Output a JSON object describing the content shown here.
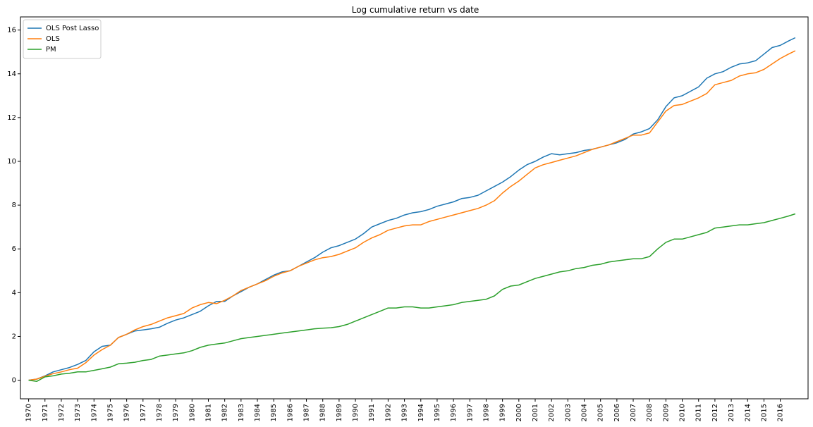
{
  "chart_data": {
    "type": "line",
    "title": "Log cumulative return vs date",
    "xlabel": "",
    "ylabel": "",
    "xlim": [
      1969.5,
      2017.7
    ],
    "ylim": [
      -0.85,
      16.6
    ],
    "x_ticks": [
      "1970",
      "1971",
      "1972",
      "1973",
      "1974",
      "1975",
      "1976",
      "1977",
      "1978",
      "1979",
      "1980",
      "1981",
      "1982",
      "1983",
      "1984",
      "1985",
      "1986",
      "1987",
      "1988",
      "1989",
      "1990",
      "1991",
      "1992",
      "1993",
      "1994",
      "1995",
      "1996",
      "1997",
      "1998",
      "1999",
      "2000",
      "2001",
      "2002",
      "2003",
      "2004",
      "2005",
      "2006",
      "2007",
      "2008",
      "2009",
      "2010",
      "2011",
      "2012",
      "2013",
      "2014",
      "2015",
      "2016"
    ],
    "y_ticks": [
      0,
      2,
      4,
      6,
      8,
      10,
      12,
      14,
      16
    ],
    "grid": false,
    "legend": {
      "placement": "top-left"
    },
    "series": [
      {
        "name": "OLS Post Lasso",
        "color": "#1f77b4",
        "x": [
          1970.0,
          1970.5,
          1971.0,
          1971.5,
          1972.0,
          1972.5,
          1973.0,
          1973.5,
          1974.0,
          1974.5,
          1975.0,
          1975.5,
          1976.0,
          1976.5,
          1977.0,
          1977.5,
          1978.0,
          1978.5,
          1979.0,
          1979.5,
          1980.0,
          1980.5,
          1981.0,
          1981.5,
          1982.0,
          1982.5,
          1983.0,
          1983.5,
          1984.0,
          1984.5,
          1985.0,
          1985.5,
          1986.0,
          1986.5,
          1987.0,
          1987.5,
          1988.0,
          1988.5,
          1989.0,
          1989.5,
          1990.0,
          1990.5,
          1991.0,
          1991.5,
          1992.0,
          1992.5,
          1993.0,
          1993.5,
          1994.0,
          1994.5,
          1995.0,
          1995.5,
          1996.0,
          1996.5,
          1997.0,
          1997.5,
          1998.0,
          1998.5,
          1999.0,
          1999.5,
          2000.0,
          2000.5,
          2001.0,
          2001.5,
          2002.0,
          2002.5,
          2003.0,
          2003.5,
          2004.0,
          2004.5,
          2005.0,
          2005.5,
          2006.0,
          2006.5,
          2007.0,
          2007.5,
          2008.0,
          2008.5,
          2009.0,
          2009.5,
          2010.0,
          2010.5,
          2011.0,
          2011.5,
          2012.0,
          2012.5,
          2013.0,
          2013.5,
          2014.0,
          2014.5,
          2015.0,
          2015.5,
          2016.0,
          2016.5,
          2016.92
        ],
        "y": [
          0.0,
          0.05,
          0.2,
          0.38,
          0.48,
          0.58,
          0.72,
          0.9,
          1.3,
          1.55,
          1.6,
          1.95,
          2.1,
          2.25,
          2.3,
          2.35,
          2.42,
          2.6,
          2.75,
          2.85,
          3.0,
          3.15,
          3.4,
          3.6,
          3.6,
          3.85,
          4.05,
          4.25,
          4.4,
          4.6,
          4.8,
          4.95,
          5.0,
          5.2,
          5.4,
          5.6,
          5.85,
          6.05,
          6.15,
          6.3,
          6.45,
          6.7,
          7.0,
          7.15,
          7.3,
          7.4,
          7.55,
          7.65,
          7.7,
          7.8,
          7.95,
          8.05,
          8.15,
          8.3,
          8.35,
          8.45,
          8.65,
          8.85,
          9.05,
          9.3,
          9.6,
          9.85,
          10.0,
          10.2,
          10.35,
          10.3,
          10.35,
          10.4,
          10.5,
          10.55,
          10.65,
          10.75,
          10.85,
          11.0,
          11.25,
          11.35,
          11.5,
          11.9,
          12.5,
          12.9,
          13.0,
          13.2,
          13.4,
          13.8,
          14.0,
          14.1,
          14.3,
          14.45,
          14.5,
          14.6,
          14.9,
          15.2,
          15.3,
          15.5,
          15.65
        ]
      },
      {
        "name": "OLS",
        "color": "#ff7f0e",
        "x": [
          1970.0,
          1970.5,
          1971.0,
          1971.5,
          1972.0,
          1972.5,
          1973.0,
          1973.5,
          1974.0,
          1974.5,
          1975.0,
          1975.5,
          1976.0,
          1976.5,
          1977.0,
          1977.5,
          1978.0,
          1978.5,
          1979.0,
          1979.5,
          1980.0,
          1980.5,
          1981.0,
          1981.5,
          1982.0,
          1982.5,
          1983.0,
          1983.5,
          1984.0,
          1984.5,
          1985.0,
          1985.5,
          1986.0,
          1986.5,
          1987.0,
          1987.5,
          1988.0,
          1988.5,
          1989.0,
          1989.5,
          1990.0,
          1990.5,
          1991.0,
          1991.5,
          1992.0,
          1992.5,
          1993.0,
          1993.5,
          1994.0,
          1994.5,
          1995.0,
          1995.5,
          1996.0,
          1996.5,
          1997.0,
          1997.5,
          1998.0,
          1998.5,
          1999.0,
          1999.5,
          2000.0,
          2000.5,
          2001.0,
          2001.5,
          2002.0,
          2002.5,
          2003.0,
          2003.5,
          2004.0,
          2004.5,
          2005.0,
          2005.5,
          2006.0,
          2006.5,
          2007.0,
          2007.5,
          2008.0,
          2008.5,
          2009.0,
          2009.5,
          2010.0,
          2010.5,
          2011.0,
          2011.5,
          2012.0,
          2012.5,
          2013.0,
          2013.5,
          2014.0,
          2014.5,
          2015.0,
          2015.5,
          2016.0,
          2016.5,
          2016.92
        ],
        "y": [
          0.0,
          0.05,
          0.18,
          0.3,
          0.38,
          0.48,
          0.55,
          0.8,
          1.15,
          1.4,
          1.6,
          1.95,
          2.1,
          2.3,
          2.45,
          2.55,
          2.7,
          2.85,
          2.95,
          3.05,
          3.3,
          3.45,
          3.55,
          3.5,
          3.65,
          3.85,
          4.1,
          4.25,
          4.4,
          4.55,
          4.75,
          4.9,
          5.0,
          5.2,
          5.35,
          5.5,
          5.6,
          5.65,
          5.75,
          5.9,
          6.05,
          6.3,
          6.5,
          6.65,
          6.85,
          6.95,
          7.05,
          7.1,
          7.1,
          7.25,
          7.35,
          7.45,
          7.55,
          7.65,
          7.75,
          7.85,
          8.0,
          8.2,
          8.55,
          8.85,
          9.1,
          9.4,
          9.7,
          9.85,
          9.95,
          10.05,
          10.15,
          10.25,
          10.4,
          10.55,
          10.65,
          10.75,
          10.9,
          11.05,
          11.2,
          11.2,
          11.3,
          11.8,
          12.3,
          12.55,
          12.6,
          12.75,
          12.9,
          13.1,
          13.5,
          13.6,
          13.7,
          13.9,
          14.0,
          14.05,
          14.2,
          14.45,
          14.7,
          14.9,
          15.05
        ]
      },
      {
        "name": "PM",
        "color": "#2ca02c",
        "x": [
          1970.0,
          1970.5,
          1971.0,
          1971.5,
          1972.0,
          1972.5,
          1973.0,
          1973.5,
          1974.0,
          1974.5,
          1975.0,
          1975.5,
          1976.0,
          1976.5,
          1977.0,
          1977.5,
          1978.0,
          1978.5,
          1979.0,
          1979.5,
          1980.0,
          1980.5,
          1981.0,
          1981.5,
          1982.0,
          1982.5,
          1983.0,
          1983.5,
          1984.0,
          1984.5,
          1985.0,
          1985.5,
          1986.0,
          1986.5,
          1987.0,
          1987.5,
          1988.0,
          1988.5,
          1989.0,
          1989.5,
          1990.0,
          1990.5,
          1991.0,
          1991.5,
          1992.0,
          1992.5,
          1993.0,
          1993.5,
          1994.0,
          1994.5,
          1995.0,
          1995.5,
          1996.0,
          1996.5,
          1997.0,
          1997.5,
          1998.0,
          1998.5,
          1999.0,
          1999.5,
          2000.0,
          2000.5,
          2001.0,
          2001.5,
          2002.0,
          2002.5,
          2003.0,
          2003.5,
          2004.0,
          2004.5,
          2005.0,
          2005.5,
          2006.0,
          2006.5,
          2007.0,
          2007.5,
          2008.0,
          2008.5,
          2009.0,
          2009.5,
          2010.0,
          2010.5,
          2011.0,
          2011.5,
          2012.0,
          2012.5,
          2013.0,
          2013.5,
          2014.0,
          2014.5,
          2015.0,
          2015.5,
          2016.0,
          2016.5,
          2016.92
        ],
        "y": [
          0.0,
          -0.05,
          0.15,
          0.2,
          0.28,
          0.32,
          0.38,
          0.38,
          0.45,
          0.52,
          0.6,
          0.75,
          0.78,
          0.82,
          0.9,
          0.95,
          1.1,
          1.15,
          1.2,
          1.25,
          1.35,
          1.5,
          1.6,
          1.65,
          1.7,
          1.8,
          1.9,
          1.95,
          2.0,
          2.05,
          2.1,
          2.15,
          2.2,
          2.25,
          2.3,
          2.35,
          2.38,
          2.4,
          2.45,
          2.55,
          2.7,
          2.85,
          3.0,
          3.15,
          3.3,
          3.3,
          3.35,
          3.35,
          3.3,
          3.3,
          3.35,
          3.4,
          3.45,
          3.55,
          3.6,
          3.65,
          3.7,
          3.85,
          4.15,
          4.3,
          4.35,
          4.5,
          4.65,
          4.75,
          4.85,
          4.95,
          5.0,
          5.1,
          5.15,
          5.25,
          5.3,
          5.4,
          5.45,
          5.5,
          5.55,
          5.55,
          5.65,
          6.0,
          6.3,
          6.45,
          6.45,
          6.55,
          6.65,
          6.75,
          6.95,
          7.0,
          7.05,
          7.1,
          7.1,
          7.15,
          7.2,
          7.3,
          7.4,
          7.5,
          7.6
        ]
      }
    ]
  }
}
